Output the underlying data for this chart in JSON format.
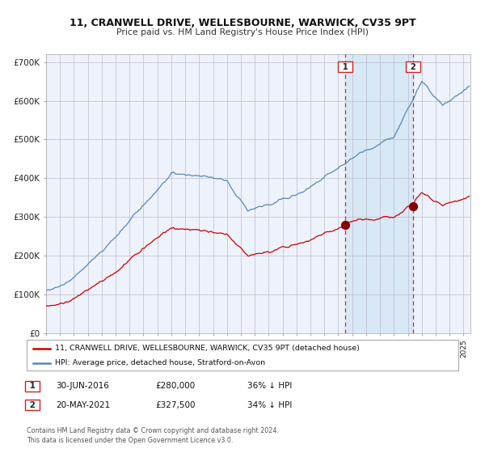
{
  "title": "11, CRANWELL DRIVE, WELLESBOURNE, WARWICK, CV35 9PT",
  "subtitle": "Price paid vs. HM Land Registry's House Price Index (HPI)",
  "red_label": "11, CRANWELL DRIVE, WELLESBOURNE, WARWICK, CV35 9PT (detached house)",
  "blue_label": "HPI: Average price, detached house, Stratford-on-Avon",
  "purchase1_date": "30-JUN-2016",
  "purchase1_price": 280000,
  "purchase1_hpi_pct": "36% ↓ HPI",
  "purchase2_date": "20-MAY-2021",
  "purchase2_price": 327500,
  "purchase2_hpi_pct": "34% ↓ HPI",
  "footer": "Contains HM Land Registry data © Crown copyright and database right 2024.\nThis data is licensed under the Open Government Licence v3.0.",
  "ylim": [
    0,
    720000
  ],
  "yticks": [
    0,
    100000,
    200000,
    300000,
    400000,
    500000,
    600000,
    700000
  ],
  "ytick_labels": [
    "£0",
    "£100K",
    "£200K",
    "£300K",
    "£400K",
    "£500K",
    "£600K",
    "£700K"
  ],
  "background_color": "#ffffff",
  "plot_bg_color": "#eef2fb",
  "shaded_region_color": "#d8e8f5",
  "grid_color": "#bbbbcc",
  "red_color": "#cc0000",
  "blue_color": "#5588bb",
  "dashed_line_color": "#dd2222",
  "marker_color": "#880000",
  "purchase1_year": 2016.5,
  "purchase2_year": 2021.38,
  "start_year": 1995.0,
  "end_year": 2025.5
}
